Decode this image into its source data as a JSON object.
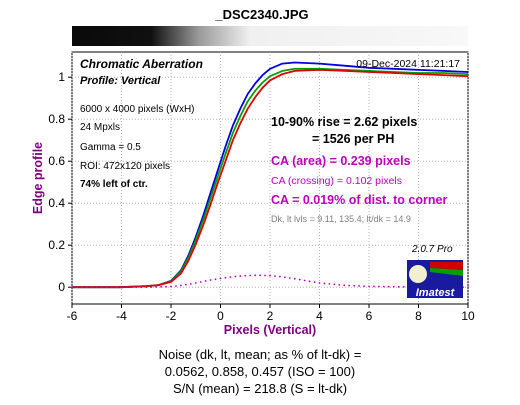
{
  "window_title": "_DSC2340.JPG",
  "panel": {
    "title": "Chromatic Aberration",
    "profile": "Profile: Vertical",
    "timestamp": "09-Dec-2024 11:21:17",
    "info": [
      "6000 x 4000 pixels (WxH)",
      "24 Mpxls",
      "Gamma = 0.5",
      "ROI: 472x120 pixels",
      "74% left of ctr."
    ]
  },
  "results": {
    "rise_line1": "10-90% rise = 2.62 pixels",
    "rise_line2": "= 1526 per PH",
    "ca_area": "CA (area) = 0.239 pixels",
    "ca_crossing": "CA (crossing) = 0.102 pixels",
    "ca_dist": "CA = 0.019% of dist. to corner",
    "levels": "Dk, lt lvls = 9.11, 135.4;  lt/dk = 14.9"
  },
  "badge": {
    "version": "2.0.7  Pro",
    "brand": "Imatest"
  },
  "footer": {
    "line1": "Noise (dk, lt, mean; as % of lt-dk) =",
    "line2": "0.0562,  0.858,  0.457  (ISO =  100)",
    "line3": "S/N (mean) = 218.8  (S = lt-dk)"
  },
  "colors": {
    "title": "#800080",
    "ca": "#c000c0",
    "red": "#e00000",
    "green": "#00a000",
    "blue": "#0000e0",
    "gray": "#808080"
  },
  "chart_data": {
    "type": "line",
    "xlabel": "Pixels (Vertical)",
    "ylabel": "Edge profile",
    "xlim": [
      -6,
      10
    ],
    "ylim": [
      -0.08,
      1.12
    ],
    "xticks": [
      -6,
      -4,
      -2,
      0,
      2,
      4,
      6,
      8,
      10
    ],
    "yticks": [
      0,
      0.2,
      0.4,
      0.6,
      0.8,
      1
    ],
    "ytick_labels": [
      "0",
      "0.2",
      "0.4",
      "0.6",
      "0.8",
      "1"
    ],
    "series": [
      {
        "color": "blue",
        "x": [
          -6,
          -4,
          -3,
          -2.5,
          -2,
          -1.6,
          -1.3,
          -1,
          -0.7,
          -0.4,
          -0.1,
          0.2,
          0.5,
          0.8,
          1.1,
          1.4,
          1.7,
          2,
          2.5,
          3,
          4,
          5,
          6,
          7,
          8,
          9,
          10
        ],
        "y": [
          0,
          0,
          0.005,
          0.01,
          0.03,
          0.08,
          0.15,
          0.24,
          0.34,
          0.45,
          0.56,
          0.67,
          0.77,
          0.85,
          0.92,
          0.97,
          1.01,
          1.04,
          1.065,
          1.07,
          1.065,
          1.055,
          1.045,
          1.04,
          1.035,
          1.03,
          1.025
        ]
      },
      {
        "color": "green",
        "x": [
          -6,
          -4,
          -3,
          -2.5,
          -2,
          -1.6,
          -1.3,
          -1,
          -0.7,
          -0.4,
          -0.1,
          0.2,
          0.5,
          0.8,
          1.1,
          1.4,
          1.7,
          2,
          2.5,
          3,
          4,
          5,
          6,
          7,
          8,
          9,
          10
        ],
        "y": [
          0,
          0,
          0.005,
          0.01,
          0.028,
          0.075,
          0.14,
          0.225,
          0.32,
          0.425,
          0.53,
          0.635,
          0.735,
          0.815,
          0.885,
          0.935,
          0.975,
          1.005,
          1.03,
          1.04,
          1.04,
          1.035,
          1.03,
          1.025,
          1.02,
          1.02,
          1.015
        ]
      },
      {
        "color": "red",
        "x": [
          -6,
          -4,
          -3,
          -2.5,
          -2,
          -1.6,
          -1.3,
          -1,
          -0.7,
          -0.4,
          -0.1,
          0.2,
          0.5,
          0.8,
          1.1,
          1.4,
          1.7,
          2,
          2.5,
          3,
          4,
          5,
          6,
          7,
          8,
          9,
          10
        ],
        "y": [
          0,
          0,
          0.005,
          0.01,
          0.025,
          0.065,
          0.125,
          0.205,
          0.295,
          0.395,
          0.5,
          0.6,
          0.7,
          0.78,
          0.85,
          0.905,
          0.95,
          0.985,
          1.015,
          1.03,
          1.035,
          1.03,
          1.025,
          1.02,
          1.015,
          1.01,
          1.005
        ]
      },
      {
        "color": "ca",
        "dotted": true,
        "x": [
          -6,
          -4,
          -3,
          -2,
          -1.5,
          -1,
          -0.5,
          0,
          0.5,
          1,
          1.5,
          2,
          2.5,
          3,
          3.5,
          4,
          5,
          6,
          7,
          8,
          9,
          10
        ],
        "y": [
          0,
          0,
          0,
          0.003,
          0.01,
          0.02,
          0.032,
          0.042,
          0.05,
          0.055,
          0.057,
          0.055,
          0.049,
          0.04,
          0.03,
          0.02,
          0.009,
          0.004,
          0.002,
          0.001,
          0,
          0
        ]
      }
    ]
  }
}
